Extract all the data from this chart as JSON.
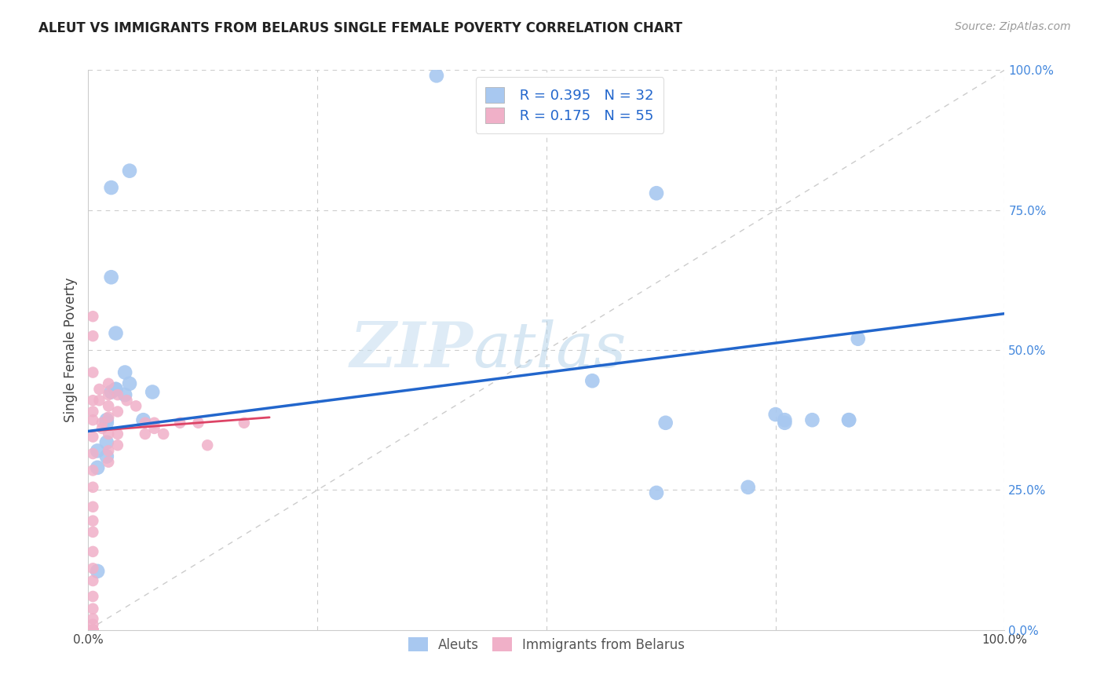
{
  "title": "ALEUT VS IMMIGRANTS FROM BELARUS SINGLE FEMALE POVERTY CORRELATION CHART",
  "source": "Source: ZipAtlas.com",
  "ylabel": "Single Female Poverty",
  "legend_entry1_r": "R = 0.395",
  "legend_entry1_n": "N = 32",
  "legend_entry2_r": "R = 0.175",
  "legend_entry2_n": "N = 55",
  "legend_label1": "Aleuts",
  "legend_label2": "Immigrants from Belarus",
  "aleut_color": "#a8c8f0",
  "aleut_line_color": "#2266cc",
  "belarus_color": "#f0b0c8",
  "belarus_line_color": "#dd4466",
  "watermark_zip": "ZIP",
  "watermark_atlas": "atlas",
  "aleuts_x": [
    0.38,
    0.025,
    0.03,
    0.025,
    0.04,
    0.025,
    0.07,
    0.62,
    0.045,
    0.02,
    0.04,
    0.045,
    0.63,
    0.76,
    0.75,
    0.79,
    0.84,
    0.55,
    0.62,
    0.72,
    0.76,
    0.83,
    0.83,
    0.01,
    0.01,
    0.01,
    0.02,
    0.02,
    0.02,
    0.03,
    0.03,
    0.06
  ],
  "aleuts_y": [
    0.99,
    0.63,
    0.53,
    0.79,
    0.46,
    0.425,
    0.425,
    0.78,
    0.82,
    0.37,
    0.42,
    0.44,
    0.37,
    0.37,
    0.385,
    0.375,
    0.52,
    0.445,
    0.245,
    0.255,
    0.375,
    0.375,
    0.375,
    0.32,
    0.29,
    0.105,
    0.375,
    0.335,
    0.31,
    0.43,
    0.43,
    0.375
  ],
  "belarus_x": [
    0.005,
    0.005,
    0.005,
    0.005,
    0.005,
    0.005,
    0.005,
    0.005,
    0.005,
    0.005,
    0.005,
    0.005,
    0.005,
    0.005,
    0.005,
    0.005,
    0.005,
    0.005,
    0.005,
    0.005,
    0.005,
    0.005,
    0.005,
    0.005,
    0.005,
    0.005,
    0.005,
    0.005,
    0.005,
    0.012,
    0.012,
    0.015,
    0.015,
    0.022,
    0.022,
    0.022,
    0.022,
    0.022,
    0.022,
    0.022,
    0.032,
    0.032,
    0.032,
    0.032,
    0.042,
    0.052,
    0.062,
    0.062,
    0.072,
    0.072,
    0.082,
    0.1,
    0.12,
    0.13,
    0.17
  ],
  "belarus_y": [
    0.56,
    0.525,
    0.46,
    0.41,
    0.39,
    0.375,
    0.345,
    0.315,
    0.285,
    0.255,
    0.22,
    0.195,
    0.175,
    0.14,
    0.11,
    0.088,
    0.06,
    0.038,
    0.02,
    0.01,
    0.0,
    0.0,
    0.0,
    0.0,
    0.0,
    0.0,
    0.0,
    0.0,
    0.0,
    0.43,
    0.41,
    0.37,
    0.36,
    0.44,
    0.42,
    0.4,
    0.38,
    0.35,
    0.32,
    0.3,
    0.42,
    0.39,
    0.35,
    0.33,
    0.41,
    0.4,
    0.37,
    0.35,
    0.37,
    0.36,
    0.35,
    0.37,
    0.37,
    0.33,
    0.37
  ],
  "xlim": [
    0.0,
    1.0
  ],
  "ylim": [
    0.0,
    1.0
  ],
  "background_color": "#ffffff",
  "grid_color": "#cccccc",
  "aleut_trendline": [
    0.0,
    1.0,
    0.355,
    0.565
  ],
  "belarus_trendline": [
    0.0,
    0.2,
    0.355,
    0.38
  ]
}
